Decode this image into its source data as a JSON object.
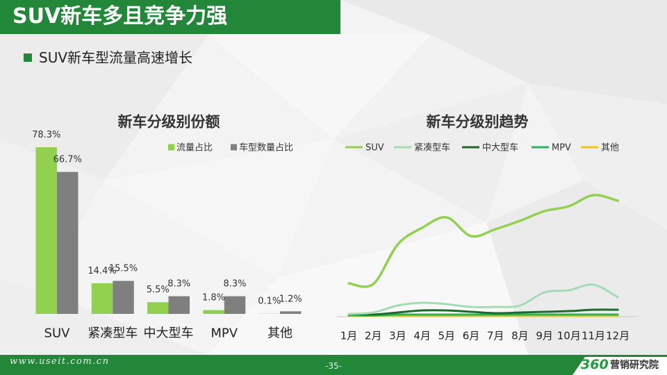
{
  "slide": {
    "title": "SUV新车多且竞争力强",
    "bullet": "SUV新车型流量高速增长",
    "footer_url": "www.useit.com.cn",
    "page_number": "-35-",
    "logo_number": "360",
    "logo_text": "营销研究院"
  },
  "theme": {
    "brand_green": "#23873a",
    "logo_green": "#1f9a3d"
  },
  "chart_data": [
    {
      "type": "bar",
      "title": "新车分级别份额",
      "categories": [
        "SUV",
        "紧凑型车",
        "中大型车",
        "MPV",
        "其他"
      ],
      "unit": "%",
      "legend": "top-right",
      "grid": false,
      "series": [
        {
          "name": "流量占比",
          "values": [
            78.3,
            14.4,
            5.5,
            1.8,
            0.1
          ],
          "color": "#92d050"
        },
        {
          "name": "车型数量占比",
          "values": [
            66.7,
            15.5,
            8.3,
            8.3,
            1.2
          ],
          "color": "#7f7f7f"
        }
      ]
    },
    {
      "type": "line",
      "title": "新车分级别趋势",
      "categories": [
        "1月",
        "2月",
        "3月",
        "4月",
        "5月",
        "6月",
        "7月",
        "8月",
        "9月",
        "10月",
        "11月",
        "12月"
      ],
      "legend": "top",
      "grid": false,
      "smooth": true,
      "ylim": [
        0,
        100
      ],
      "series": [
        {
          "name": "SUV",
          "values": [
            24,
            23.5,
            52,
            64,
            71.5,
            58,
            63,
            69,
            76,
            79.5,
            87.5,
            83.5
          ],
          "color": "#92d050"
        },
        {
          "name": "紧凑型车",
          "values": [
            2,
            3,
            8,
            10,
            9,
            7,
            7,
            8,
            17.5,
            19,
            23,
            14
          ],
          "color": "#a3dbb5"
        },
        {
          "name": "中大型车",
          "values": [
            2,
            1.5,
            3,
            4.5,
            4.5,
            3.5,
            2.5,
            3,
            3.5,
            4,
            5,
            5
          ],
          "color": "#1d6a2c"
        },
        {
          "name": "MPV",
          "values": [
            1,
            1,
            1.5,
            1.5,
            1.5,
            1.5,
            1.5,
            1.5,
            1.5,
            1.5,
            1.5,
            1.5
          ],
          "color": "#2bb35c"
        },
        {
          "name": "其他",
          "values": [
            0.5,
            0.5,
            0.5,
            0.5,
            0.5,
            0.5,
            0.5,
            0.5,
            0.5,
            0.5,
            0.5,
            0.5
          ],
          "color": "#f2c417"
        }
      ]
    }
  ]
}
